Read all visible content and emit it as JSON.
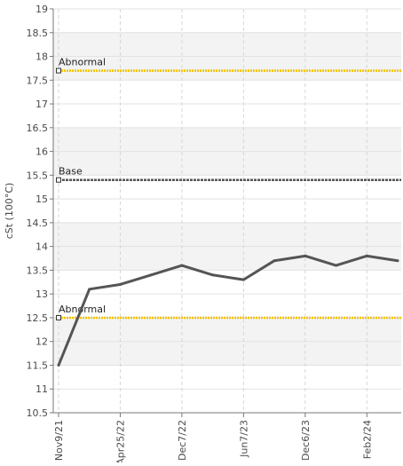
{
  "chart_data": {
    "type": "line",
    "title": "",
    "ylabel": "cSt (100°C)",
    "xlabel": "",
    "ylim": [
      10.5,
      19
    ],
    "y_ticks": [
      10.5,
      11,
      11.5,
      12,
      12.5,
      13,
      13.5,
      14,
      14.5,
      15,
      15.5,
      16,
      16.5,
      17,
      17.5,
      18,
      18.5,
      19
    ],
    "x_tick_labels": [
      "Nov9/21",
      "Apr25/22",
      "Dec7/22",
      "Jun7/23",
      "Dec6/23",
      "Feb2/24"
    ],
    "grid": true,
    "series": [
      {
        "values": [
          11.5,
          13.1,
          13.2,
          13.4,
          13.6,
          13.4,
          13.3,
          13.7,
          13.8,
          13.6,
          13.8,
          13.7
        ],
        "color": "#555555"
      }
    ],
    "reference_lines": [
      {
        "label": "Abnormal",
        "value": 17.7,
        "color": "#f2c200"
      },
      {
        "label": "Base",
        "value": 15.4,
        "color": "#555555"
      },
      {
        "label": "Abnormal",
        "value": 12.5,
        "color": "#f2c200"
      }
    ]
  }
}
